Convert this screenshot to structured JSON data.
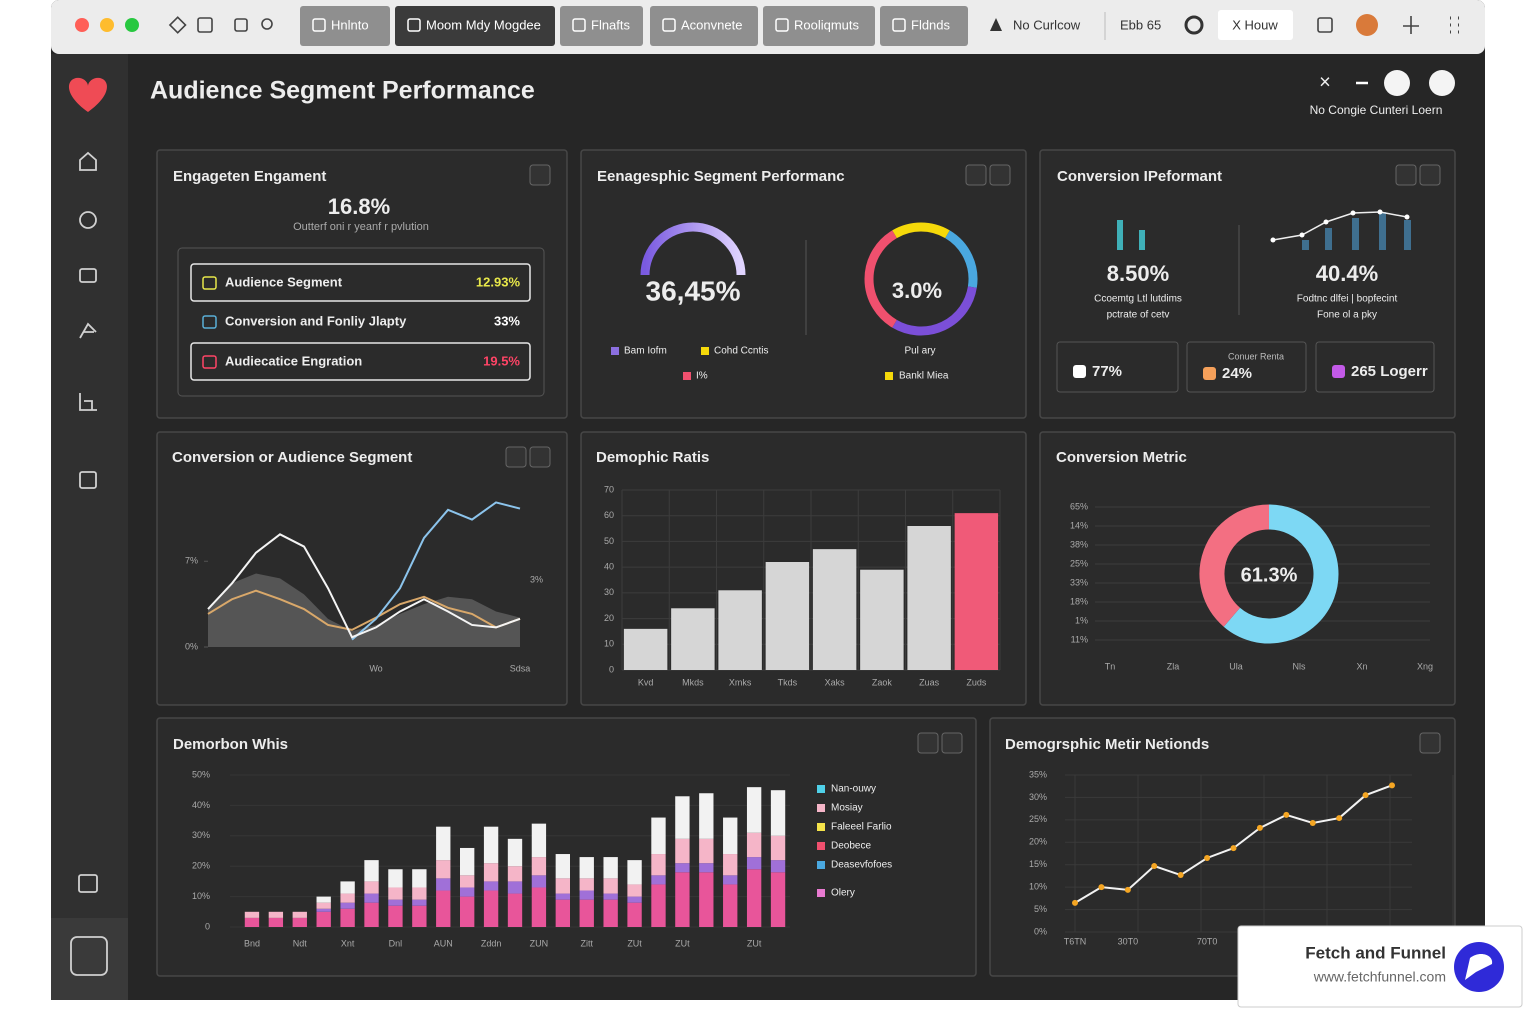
{
  "browser": {
    "tabs": [
      "Hnlnto",
      "Moom Mdy Mogdee",
      "Flnafts",
      "Aconvnete",
      "Rooliqmuts",
      "Fldnds"
    ],
    "status": "No Curlcow",
    "zoom": "Ebb 65",
    "action": "X Houw"
  },
  "header": {
    "title": "Audience Segment Performance",
    "note": "No Congie Cunteri Loern"
  },
  "engagement": {
    "title": "Engageten Engament",
    "value": "16.8%",
    "caption": "Outterf oni r yeanf r pvlution",
    "rows": [
      {
        "label": "Audience Segment",
        "value": "12.93%",
        "color": "#e8e84a"
      },
      {
        "label": "Conversion and Fonliy Jlapty",
        "value": "33%",
        "color": "#ffffff"
      },
      {
        "label": "Audiecatice Engration",
        "value": "19.5%",
        "color": "#ff4466"
      }
    ]
  },
  "segment_performance": {
    "title": "Eenagesphic Segment Performanc",
    "gauge_label": "36,45%",
    "gauge_legend": [
      {
        "label": "Bam Iofm",
        "color": "#8b6fe0"
      },
      {
        "label": "Cohd Ccntis",
        "color": "#f5d90a"
      },
      {
        "label": "I%",
        "color": "#f0506e"
      }
    ],
    "ring": {
      "label": "3.0%",
      "caption": "Pul ary",
      "values": [
        17,
        19,
        31,
        33
      ],
      "colors": [
        "#f5d90a",
        "#4aa8e0",
        "#7b4fd8",
        "#f0506e"
      ]
    },
    "ring_legend": [
      {
        "label": "Bankl Miea",
        "color": "#f5d90a"
      }
    ]
  },
  "conversion_performance": {
    "title": "Conversion IPeformant",
    "left": {
      "value": "8.50%",
      "caption": [
        "Ccoemtg Ltl lutdims",
        "pctrate of cetv"
      ],
      "bars": [
        30,
        20
      ],
      "color": "#3fb0b8"
    },
    "right": {
      "value": "40.4%",
      "caption": [
        "Fodtnc dlfei | bopfecint",
        "Fone ol a pky"
      ],
      "bars": [
        10,
        22,
        32,
        38,
        30
      ],
      "line": [
        10,
        15,
        28,
        37,
        38,
        33
      ],
      "color": "#3f6f8f"
    },
    "tiles": [
      {
        "value": "77%",
        "color": "#ffffff"
      },
      {
        "label": "Conuer Renta",
        "value": "24%",
        "color": "#f5a05a"
      },
      {
        "value": "265 Logerr",
        "color": "#c35ae8"
      }
    ]
  },
  "segment_line": {
    "title": "Conversion or Audience Segment",
    "type": "line",
    "categories": [
      null,
      null,
      null,
      null,
      null,
      null,
      null,
      "Wo",
      null,
      null,
      null,
      null,
      null,
      "Sdsa"
    ],
    "series": [
      {
        "color": "#5a5a5a",
        "area": true,
        "values": [
          3.1,
          5.2,
          6.0,
          5.6,
          4.3,
          2.3,
          1.3,
          1.8,
          2.7,
          3.5,
          4.1,
          3.9,
          2.9,
          2.4
        ]
      },
      {
        "color": "#d9a86a",
        "values": [
          2.7,
          3.9,
          4.6,
          3.9,
          3.1,
          1.8,
          1.4,
          2.4,
          3.5,
          4.1,
          3.2,
          2.7,
          1.6,
          2.3
        ]
      },
      {
        "color": "#8cc4ec",
        "values": [
          null,
          null,
          null,
          null,
          null,
          null,
          0.6,
          2.3,
          4.8,
          8.9,
          11.2,
          10.4,
          11.8,
          11.3
        ]
      },
      {
        "color": "#f4f4f4",
        "values": [
          3.1,
          5.2,
          7.7,
          9.2,
          8.2,
          4.8,
          0.8,
          1.6,
          2.9,
          3.9,
          2.9,
          1.8,
          1.6,
          2.3
        ]
      }
    ],
    "ylim": [
      0,
      12
    ],
    "yticks": [
      {
        "value": 0,
        "label": "0%"
      },
      {
        "value": 7,
        "label": "7%"
      }
    ],
    "annotation": "3%"
  },
  "ratio_chart": {
    "title": "Demophic Ratis",
    "type": "bar",
    "categories": [
      "Kvd",
      "Mkds",
      "Xmks",
      "Tkds",
      "Xaks",
      "Zaok",
      "Zuas",
      "Zuds"
    ],
    "values": [
      16,
      24,
      31,
      42,
      47,
      39,
      56,
      61
    ],
    "colors": [
      "#d6d6d6",
      "#d6d6d6",
      "#d6d6d6",
      "#d6d6d6",
      "#d6d6d6",
      "#d6d6d6",
      "#d6d6d6",
      "#f05a78"
    ],
    "ylim": [
      0,
      70
    ],
    "yticks": [
      0,
      10,
      20,
      30,
      40,
      50,
      60,
      70
    ],
    "grid": true
  },
  "conversion_metric": {
    "title": "Conversion Metric",
    "type": "pie",
    "center_label": "61.3%",
    "values": [
      61.3,
      38.7
    ],
    "colors": [
      "#7dd8f4",
      "#f36f82"
    ],
    "grid_labels": [
      "65%",
      "14%",
      "38%",
      "25%",
      "33%",
      "18%",
      "1%",
      "11%"
    ],
    "x_labels": [
      "Tn",
      "Zla",
      "Ula",
      "Nls",
      "Xn",
      "Xng"
    ]
  },
  "stacked_chart": {
    "title": "Demorbon Whis",
    "type": "stacked_bar",
    "categories": [
      "Bnd",
      null,
      "Ndt",
      null,
      "Xnt",
      null,
      "Dnl",
      null,
      "AUN",
      null,
      "Zddn",
      null,
      "ZUN",
      null,
      "Zitt",
      null,
      "ZUt",
      null,
      "ZUt",
      null,
      null,
      "ZUt",
      null
    ],
    "series": [
      {
        "color": "#e8559a",
        "values": [
          3,
          3,
          3,
          5,
          6,
          8,
          7,
          7,
          12,
          10,
          12,
          11,
          13,
          9,
          9,
          9,
          8,
          14,
          18,
          18,
          14,
          19,
          18
        ]
      },
      {
        "color": "#a070d8",
        "values": [
          0,
          0,
          0,
          1,
          2,
          3,
          2,
          2,
          4,
          3,
          3,
          4,
          4,
          2,
          3,
          2,
          2,
          3,
          3,
          3,
          3,
          4,
          4
        ]
      },
      {
        "color": "#f5b5c8",
        "values": [
          2,
          2,
          2,
          2,
          3,
          4,
          4,
          4,
          6,
          4,
          6,
          5,
          6,
          5,
          4,
          5,
          4,
          7,
          8,
          8,
          7,
          8,
          8
        ]
      },
      {
        "color": "#f2f2f2",
        "values": [
          0,
          0,
          0,
          2,
          4,
          7,
          6,
          6,
          11,
          9,
          12,
          9,
          11,
          8,
          7,
          7,
          8,
          12,
          14,
          15,
          12,
          15,
          15
        ]
      }
    ],
    "legend": [
      {
        "label": "Nan-ouwy",
        "color": "#4fd0e8"
      },
      {
        "label": "Mosiay",
        "color": "#f5b5c8"
      },
      {
        "label": "Faleeel Farlio",
        "color": "#f5e34a"
      },
      {
        "label": "Deobece",
        "color": "#f0506e"
      },
      {
        "label": "Deasevfofoes",
        "color": "#4aa8e0"
      },
      {
        "label": "Olery",
        "color": "#e87ad0"
      }
    ],
    "ylim": [
      0,
      50
    ],
    "yticks": [
      0,
      {
        "value": 10,
        "label": "10%"
      },
      {
        "value": 20,
        "label": "20%"
      },
      {
        "value": 30,
        "label": "30%"
      },
      {
        "value": 40,
        "label": "40%"
      },
      {
        "value": 50,
        "label": "50%"
      }
    ]
  },
  "metric_line": {
    "title": "Demogrsphic Metir Netionds",
    "type": "line",
    "categories": [
      "T6TN",
      null,
      "30T0",
      null,
      null,
      "70T0",
      null,
      null,
      null,
      null,
      null,
      null,
      null
    ],
    "values": [
      6.5,
      10.0,
      9.4,
      14.7,
      12.7,
      16.5,
      18.7,
      23.2,
      26.1,
      24.3,
      25.4,
      30.5,
      32.7
    ],
    "color": "#f2f2f2",
    "marker_color": "#f5a623",
    "ylim": [
      0,
      35
    ],
    "yticks": [
      {
        "value": 0,
        "label": "0%"
      },
      {
        "value": 5,
        "label": "5%"
      },
      {
        "value": 10,
        "label": "10%"
      },
      {
        "value": 15,
        "label": "15%"
      },
      {
        "value": 20,
        "label": "20%"
      },
      {
        "value": 25,
        "label": "25%"
      },
      {
        "value": 30,
        "label": "30%"
      },
      {
        "value": 35,
        "label": "35%"
      }
    ]
  },
  "watermark": {
    "name": "Fetch and Funnel",
    "url": "www.fetchfunnel.com"
  }
}
